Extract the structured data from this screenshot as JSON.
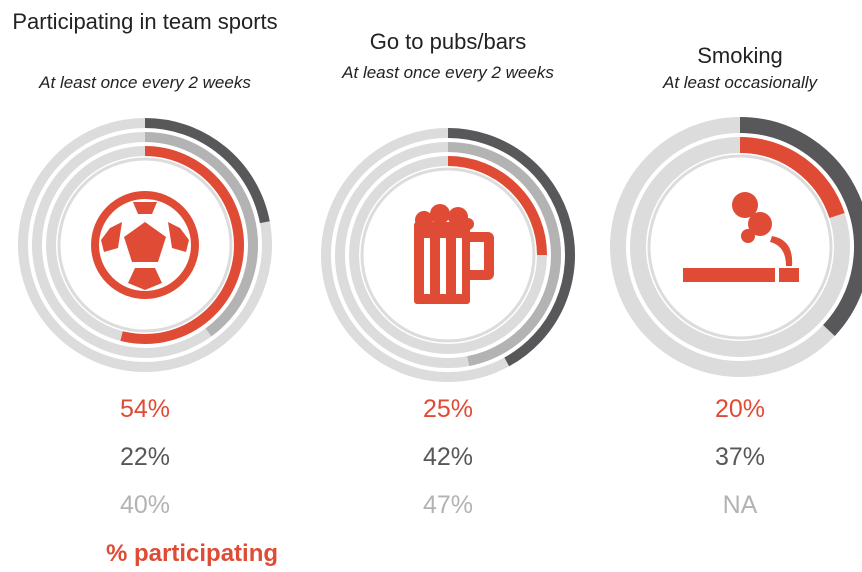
{
  "chart_data": [
    {
      "type": "radial",
      "title": "Participating in team sports",
      "subtitle": "At least once every 2 weeks",
      "ylim": [
        0,
        100
      ],
      "series": [
        {
          "name": "% participating",
          "color": "#e04b35",
          "values": [
            54
          ],
          "value_labels": [
            "54%"
          ]
        },
        {
          "color": "#58585a",
          "values": [
            22
          ],
          "value_labels": [
            "22%"
          ]
        },
        {
          "color": "#b3b3b3",
          "values": [
            40
          ],
          "value_labels": [
            "40%"
          ]
        }
      ]
    },
    {
      "type": "radial",
      "title": "Go to pubs/bars",
      "subtitle": "At least once every 2 weeks",
      "ylim": [
        0,
        100
      ],
      "series": [
        {
          "color": "#e04b35",
          "values": [
            25
          ],
          "value_labels": [
            "25%"
          ]
        },
        {
          "color": "#58585a",
          "values": [
            42
          ],
          "value_labels": [
            "42%"
          ]
        },
        {
          "color": "#b3b3b3",
          "values": [
            47
          ],
          "value_labels": [
            "47%"
          ]
        }
      ]
    },
    {
      "type": "radial",
      "title": "Smoking",
      "subtitle": "At least occasionally",
      "ylim": [
        0,
        100
      ],
      "series": [
        {
          "color": "#e04b35",
          "values": [
            20
          ],
          "value_labels": [
            "20%"
          ]
        },
        {
          "color": "#58585a",
          "values": [
            37
          ],
          "value_labels": [
            "37%"
          ]
        },
        {
          "color": "#b3b3b3",
          "values": [
            null
          ],
          "value_labels": [
            "NA"
          ]
        }
      ]
    }
  ]
}
